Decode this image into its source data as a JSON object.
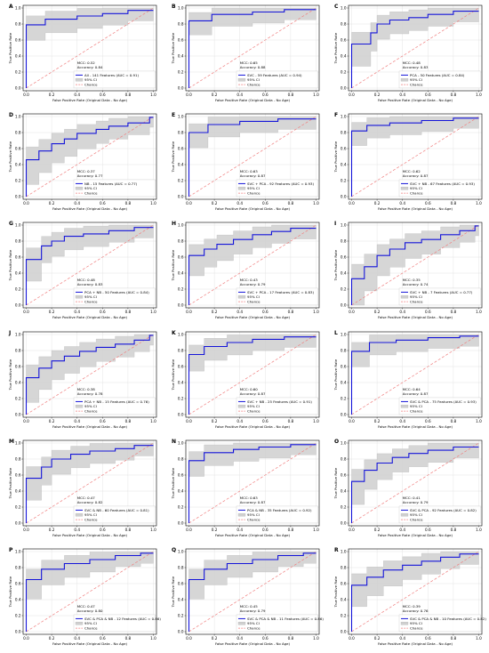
{
  "common": {
    "xlabel": "False Positive Rate (Original Data - No Age)",
    "ylabel": "True Positive Rate",
    "ci_label": "95% CI",
    "chance_label": "Chance",
    "mcc_prefix": "MCC: ",
    "acc_prefix": "Accuracy: ",
    "ticks": [
      "0.0",
      "0.2",
      "0.4",
      "0.6",
      "0.8",
      "1.0"
    ],
    "colors": {
      "roc": "#1515d9",
      "ci": "#cfcfcf",
      "chance": "#f08080",
      "grid": "#e4e4e4"
    }
  },
  "chart_data": [
    {
      "type": "line",
      "panel": "A",
      "mcc": "0.52",
      "accuracy": "0.84",
      "legend": "All - 141 Features (AUC = 0.91)",
      "xlim": [
        0,
        1
      ],
      "ylim": [
        0,
        1
      ],
      "roc": [
        [
          0,
          0
        ],
        [
          0,
          0.79
        ],
        [
          0.15,
          0.79
        ],
        [
          0.15,
          0.86
        ],
        [
          0.4,
          0.86
        ],
        [
          0.4,
          0.9
        ],
        [
          0.6,
          0.9
        ],
        [
          0.6,
          0.93
        ],
        [
          0.8,
          0.93
        ],
        [
          0.8,
          0.97
        ],
        [
          1,
          0.97
        ]
      ]
    },
    {
      "type": "line",
      "panel": "B",
      "mcc": "0.65",
      "accuracy": "0.88",
      "legend": "SVC - 59 Features (AUC = 0.94)",
      "xlim": [
        0,
        1
      ],
      "ylim": [
        0,
        1
      ],
      "roc": [
        [
          0,
          0
        ],
        [
          0,
          0.84
        ],
        [
          0.18,
          0.84
        ],
        [
          0.18,
          0.92
        ],
        [
          0.5,
          0.92
        ],
        [
          0.5,
          0.95
        ],
        [
          0.75,
          0.95
        ],
        [
          0.75,
          0.98
        ],
        [
          1,
          0.98
        ]
      ]
    },
    {
      "type": "line",
      "panel": "C",
      "mcc": "0.48",
      "accuracy": "0.83",
      "legend": "PCA - 50 Features (AUC = 0.84)",
      "xlim": [
        0,
        1
      ],
      "ylim": [
        0,
        1
      ],
      "roc": [
        [
          0,
          0
        ],
        [
          0,
          0.55
        ],
        [
          0.15,
          0.55
        ],
        [
          0.15,
          0.69
        ],
        [
          0.2,
          0.69
        ],
        [
          0.2,
          0.8
        ],
        [
          0.3,
          0.8
        ],
        [
          0.3,
          0.85
        ],
        [
          0.45,
          0.85
        ],
        [
          0.45,
          0.88
        ],
        [
          0.6,
          0.88
        ],
        [
          0.6,
          0.92
        ],
        [
          0.8,
          0.92
        ],
        [
          0.8,
          0.96
        ],
        [
          1,
          0.96
        ]
      ]
    },
    {
      "type": "line",
      "panel": "D",
      "mcc": "0.37",
      "accuracy": "0.77",
      "legend": "NB - 15 Features (AUC = 0.77)",
      "xlim": [
        0,
        1
      ],
      "ylim": [
        0,
        1
      ],
      "roc": [
        [
          0,
          0
        ],
        [
          0,
          0.46
        ],
        [
          0.1,
          0.46
        ],
        [
          0.1,
          0.57
        ],
        [
          0.2,
          0.57
        ],
        [
          0.2,
          0.66
        ],
        [
          0.3,
          0.66
        ],
        [
          0.3,
          0.72
        ],
        [
          0.4,
          0.72
        ],
        [
          0.4,
          0.79
        ],
        [
          0.55,
          0.79
        ],
        [
          0.55,
          0.84
        ],
        [
          0.65,
          0.84
        ],
        [
          0.65,
          0.88
        ],
        [
          0.8,
          0.88
        ],
        [
          0.8,
          0.92
        ],
        [
          0.97,
          0.92
        ],
        [
          0.97,
          0.99
        ],
        [
          1,
          0.99
        ]
      ]
    },
    {
      "type": "line",
      "panel": "E",
      "mcc": "0.63",
      "accuracy": "0.87",
      "legend": "SVC + PCA - 92 Features (AUC = 0.93)",
      "xlim": [
        0,
        1
      ],
      "ylim": [
        0,
        1
      ],
      "roc": [
        [
          0,
          0
        ],
        [
          0,
          0.8
        ],
        [
          0.15,
          0.8
        ],
        [
          0.15,
          0.9
        ],
        [
          0.4,
          0.9
        ],
        [
          0.4,
          0.94
        ],
        [
          0.7,
          0.94
        ],
        [
          0.7,
          0.97
        ],
        [
          1,
          0.97
        ]
      ]
    },
    {
      "type": "line",
      "panel": "F",
      "mcc": "0.62",
      "accuracy": "0.87",
      "legend": "SVC + NB - 67 Features (AUC = 0.93)",
      "xlim": [
        0,
        1
      ],
      "ylim": [
        0,
        1
      ],
      "roc": [
        [
          0,
          0
        ],
        [
          0,
          0.82
        ],
        [
          0.12,
          0.82
        ],
        [
          0.12,
          0.89
        ],
        [
          0.3,
          0.89
        ],
        [
          0.3,
          0.92
        ],
        [
          0.55,
          0.92
        ],
        [
          0.55,
          0.95
        ],
        [
          0.8,
          0.95
        ],
        [
          0.8,
          0.98
        ],
        [
          1,
          0.98
        ]
      ]
    },
    {
      "type": "line",
      "panel": "G",
      "mcc": "0.48",
      "accuracy": "0.83",
      "legend": "PCA + NB - 50 Features (AUC = 0.84)",
      "xlim": [
        0,
        1
      ],
      "ylim": [
        0,
        1
      ],
      "roc": [
        [
          0,
          0
        ],
        [
          0,
          0.57
        ],
        [
          0.12,
          0.57
        ],
        [
          0.12,
          0.74
        ],
        [
          0.2,
          0.74
        ],
        [
          0.2,
          0.8
        ],
        [
          0.3,
          0.8
        ],
        [
          0.3,
          0.86
        ],
        [
          0.45,
          0.86
        ],
        [
          0.45,
          0.89
        ],
        [
          0.65,
          0.89
        ],
        [
          0.65,
          0.93
        ],
        [
          0.85,
          0.93
        ],
        [
          0.85,
          0.97
        ],
        [
          1,
          0.97
        ]
      ]
    },
    {
      "type": "line",
      "panel": "H",
      "mcc": "0.43",
      "accuracy": "0.79",
      "legend": "SVC + PCA - 17 Features (AUC = 0.83)",
      "xlim": [
        0,
        1
      ],
      "ylim": [
        0,
        1
      ],
      "roc": [
        [
          0,
          0
        ],
        [
          0,
          0.62
        ],
        [
          0.12,
          0.62
        ],
        [
          0.12,
          0.7
        ],
        [
          0.22,
          0.7
        ],
        [
          0.22,
          0.76
        ],
        [
          0.35,
          0.76
        ],
        [
          0.35,
          0.82
        ],
        [
          0.5,
          0.82
        ],
        [
          0.5,
          0.88
        ],
        [
          0.65,
          0.88
        ],
        [
          0.65,
          0.92
        ],
        [
          0.8,
          0.92
        ],
        [
          0.8,
          0.96
        ],
        [
          1,
          0.96
        ]
      ]
    },
    {
      "type": "line",
      "panel": "I",
      "mcc": "0.35",
      "accuracy": "0.74",
      "legend": "SVC + NB - 7 Features (AUC = 0.77)",
      "xlim": [
        0,
        1
      ],
      "ylim": [
        0,
        1
      ],
      "roc": [
        [
          0,
          0
        ],
        [
          0,
          0.33
        ],
        [
          0.1,
          0.33
        ],
        [
          0.1,
          0.48
        ],
        [
          0.2,
          0.48
        ],
        [
          0.2,
          0.62
        ],
        [
          0.3,
          0.62
        ],
        [
          0.3,
          0.7
        ],
        [
          0.42,
          0.7
        ],
        [
          0.42,
          0.78
        ],
        [
          0.55,
          0.78
        ],
        [
          0.55,
          0.82
        ],
        [
          0.7,
          0.82
        ],
        [
          0.7,
          0.88
        ],
        [
          0.85,
          0.88
        ],
        [
          0.85,
          0.93
        ],
        [
          0.97,
          0.93
        ],
        [
          0.97,
          0.99
        ],
        [
          1,
          0.99
        ]
      ]
    },
    {
      "type": "line",
      "panel": "J",
      "mcc": "0.38",
      "accuracy": "0.78",
      "legend": "PCA + NB - 15 Features (AUC = 0.76)",
      "xlim": [
        0,
        1
      ],
      "ylim": [
        0,
        1
      ],
      "roc": [
        [
          0,
          0
        ],
        [
          0,
          0.46
        ],
        [
          0.1,
          0.46
        ],
        [
          0.1,
          0.58
        ],
        [
          0.2,
          0.58
        ],
        [
          0.2,
          0.67
        ],
        [
          0.3,
          0.67
        ],
        [
          0.3,
          0.73
        ],
        [
          0.42,
          0.73
        ],
        [
          0.42,
          0.79
        ],
        [
          0.55,
          0.79
        ],
        [
          0.55,
          0.84
        ],
        [
          0.7,
          0.84
        ],
        [
          0.7,
          0.88
        ],
        [
          0.85,
          0.88
        ],
        [
          0.85,
          0.93
        ],
        [
          0.97,
          0.93
        ],
        [
          0.97,
          0.99
        ],
        [
          1,
          0.99
        ]
      ]
    },
    {
      "type": "line",
      "panel": "K",
      "mcc": "0.60",
      "accuracy": "0.87",
      "legend": "SVC + NB - 25 Features (AUC = 0.91)",
      "xlim": [
        0,
        1
      ],
      "ylim": [
        0,
        1
      ],
      "roc": [
        [
          0,
          0
        ],
        [
          0,
          0.75
        ],
        [
          0.12,
          0.75
        ],
        [
          0.12,
          0.85
        ],
        [
          0.3,
          0.85
        ],
        [
          0.3,
          0.9
        ],
        [
          0.5,
          0.9
        ],
        [
          0.5,
          0.94
        ],
        [
          0.75,
          0.94
        ],
        [
          0.75,
          0.97
        ],
        [
          1,
          0.97
        ]
      ]
    },
    {
      "type": "line",
      "panel": "L",
      "mcc": "0.64",
      "accuracy": "0.87",
      "legend": "SVC & PCA - 75 Features (AUC = 0.93)",
      "xlim": [
        0,
        1
      ],
      "ylim": [
        0,
        1
      ],
      "roc": [
        [
          0,
          0
        ],
        [
          0,
          0.79
        ],
        [
          0.14,
          0.79
        ],
        [
          0.14,
          0.9
        ],
        [
          0.35,
          0.9
        ],
        [
          0.35,
          0.93
        ],
        [
          0.6,
          0.93
        ],
        [
          0.6,
          0.96
        ],
        [
          0.85,
          0.96
        ],
        [
          0.85,
          0.98
        ],
        [
          1,
          0.98
        ]
      ]
    },
    {
      "type": "line",
      "panel": "M",
      "mcc": "0.47",
      "accuracy": "0.82",
      "legend": "SVC & NB - 60 Features (AUC = 0.81)",
      "xlim": [
        0,
        1
      ],
      "ylim": [
        0,
        1
      ],
      "roc": [
        [
          0,
          0
        ],
        [
          0,
          0.56
        ],
        [
          0.12,
          0.56
        ],
        [
          0.12,
          0.7
        ],
        [
          0.2,
          0.7
        ],
        [
          0.2,
          0.8
        ],
        [
          0.35,
          0.8
        ],
        [
          0.35,
          0.86
        ],
        [
          0.5,
          0.86
        ],
        [
          0.5,
          0.9
        ],
        [
          0.7,
          0.9
        ],
        [
          0.7,
          0.93
        ],
        [
          0.85,
          0.93
        ],
        [
          0.85,
          0.97
        ],
        [
          1,
          0.97
        ]
      ]
    },
    {
      "type": "line",
      "panel": "N",
      "mcc": "0.63",
      "accuracy": "0.87",
      "legend": "PCA & NB - 35 Features (AUC = 0.92)",
      "xlim": [
        0,
        1
      ],
      "ylim": [
        0,
        1
      ],
      "roc": [
        [
          0,
          0
        ],
        [
          0,
          0.78
        ],
        [
          0.12,
          0.78
        ],
        [
          0.12,
          0.88
        ],
        [
          0.35,
          0.88
        ],
        [
          0.35,
          0.92
        ],
        [
          0.55,
          0.92
        ],
        [
          0.55,
          0.95
        ],
        [
          0.8,
          0.95
        ],
        [
          0.8,
          0.98
        ],
        [
          1,
          0.98
        ]
      ]
    },
    {
      "type": "line",
      "panel": "O",
      "mcc": "0.41",
      "accuracy": "0.79",
      "legend": "SVC & PCA - 92 Features (AUC = 0.82)",
      "xlim": [
        0,
        1
      ],
      "ylim": [
        0,
        1
      ],
      "roc": [
        [
          0,
          0
        ],
        [
          0,
          0.52
        ],
        [
          0.1,
          0.52
        ],
        [
          0.1,
          0.66
        ],
        [
          0.2,
          0.66
        ],
        [
          0.2,
          0.75
        ],
        [
          0.32,
          0.75
        ],
        [
          0.32,
          0.82
        ],
        [
          0.45,
          0.82
        ],
        [
          0.45,
          0.87
        ],
        [
          0.6,
          0.87
        ],
        [
          0.6,
          0.91
        ],
        [
          0.8,
          0.91
        ],
        [
          0.8,
          0.95
        ],
        [
          1,
          0.95
        ]
      ]
    },
    {
      "type": "line",
      "panel": "P",
      "mcc": "0.47",
      "accuracy": "0.80",
      "legend": "SVC & PCA & NB - 12 Features (AUC = 0.86)",
      "xlim": [
        0,
        1
      ],
      "ylim": [
        0,
        1
      ],
      "roc": [
        [
          0,
          0
        ],
        [
          0,
          0.65
        ],
        [
          0.12,
          0.65
        ],
        [
          0.12,
          0.78
        ],
        [
          0.3,
          0.78
        ],
        [
          0.3,
          0.85
        ],
        [
          0.5,
          0.85
        ],
        [
          0.5,
          0.9
        ],
        [
          0.7,
          0.9
        ],
        [
          0.7,
          0.95
        ],
        [
          0.9,
          0.95
        ],
        [
          0.9,
          0.98
        ],
        [
          1,
          0.98
        ]
      ]
    },
    {
      "type": "line",
      "panel": "Q",
      "mcc": "0.45",
      "accuracy": "0.79",
      "legend": "SVC & PCA & NB - 11 Features (AUC = 0.86)",
      "xlim": [
        0,
        1
      ],
      "ylim": [
        0,
        1
      ],
      "roc": [
        [
          0,
          0
        ],
        [
          0,
          0.65
        ],
        [
          0.12,
          0.65
        ],
        [
          0.12,
          0.78
        ],
        [
          0.3,
          0.78
        ],
        [
          0.3,
          0.85
        ],
        [
          0.5,
          0.85
        ],
        [
          0.5,
          0.9
        ],
        [
          0.7,
          0.9
        ],
        [
          0.7,
          0.95
        ],
        [
          0.9,
          0.95
        ],
        [
          0.9,
          0.98
        ],
        [
          1,
          0.98
        ]
      ]
    },
    {
      "type": "line",
      "panel": "R",
      "mcc": "0.39",
      "accuracy": "0.76",
      "legend": "SVC & PCA & NB - 10 Features (AUC = 0.82)",
      "xlim": [
        0,
        1
      ],
      "ylim": [
        0,
        1
      ],
      "roc": [
        [
          0,
          0
        ],
        [
          0,
          0.58
        ],
        [
          0.12,
          0.58
        ],
        [
          0.12,
          0.68
        ],
        [
          0.25,
          0.68
        ],
        [
          0.25,
          0.77
        ],
        [
          0.4,
          0.77
        ],
        [
          0.4,
          0.83
        ],
        [
          0.55,
          0.83
        ],
        [
          0.55,
          0.88
        ],
        [
          0.7,
          0.88
        ],
        [
          0.7,
          0.93
        ],
        [
          0.85,
          0.93
        ],
        [
          0.85,
          0.97
        ],
        [
          1,
          0.97
        ]
      ]
    }
  ]
}
